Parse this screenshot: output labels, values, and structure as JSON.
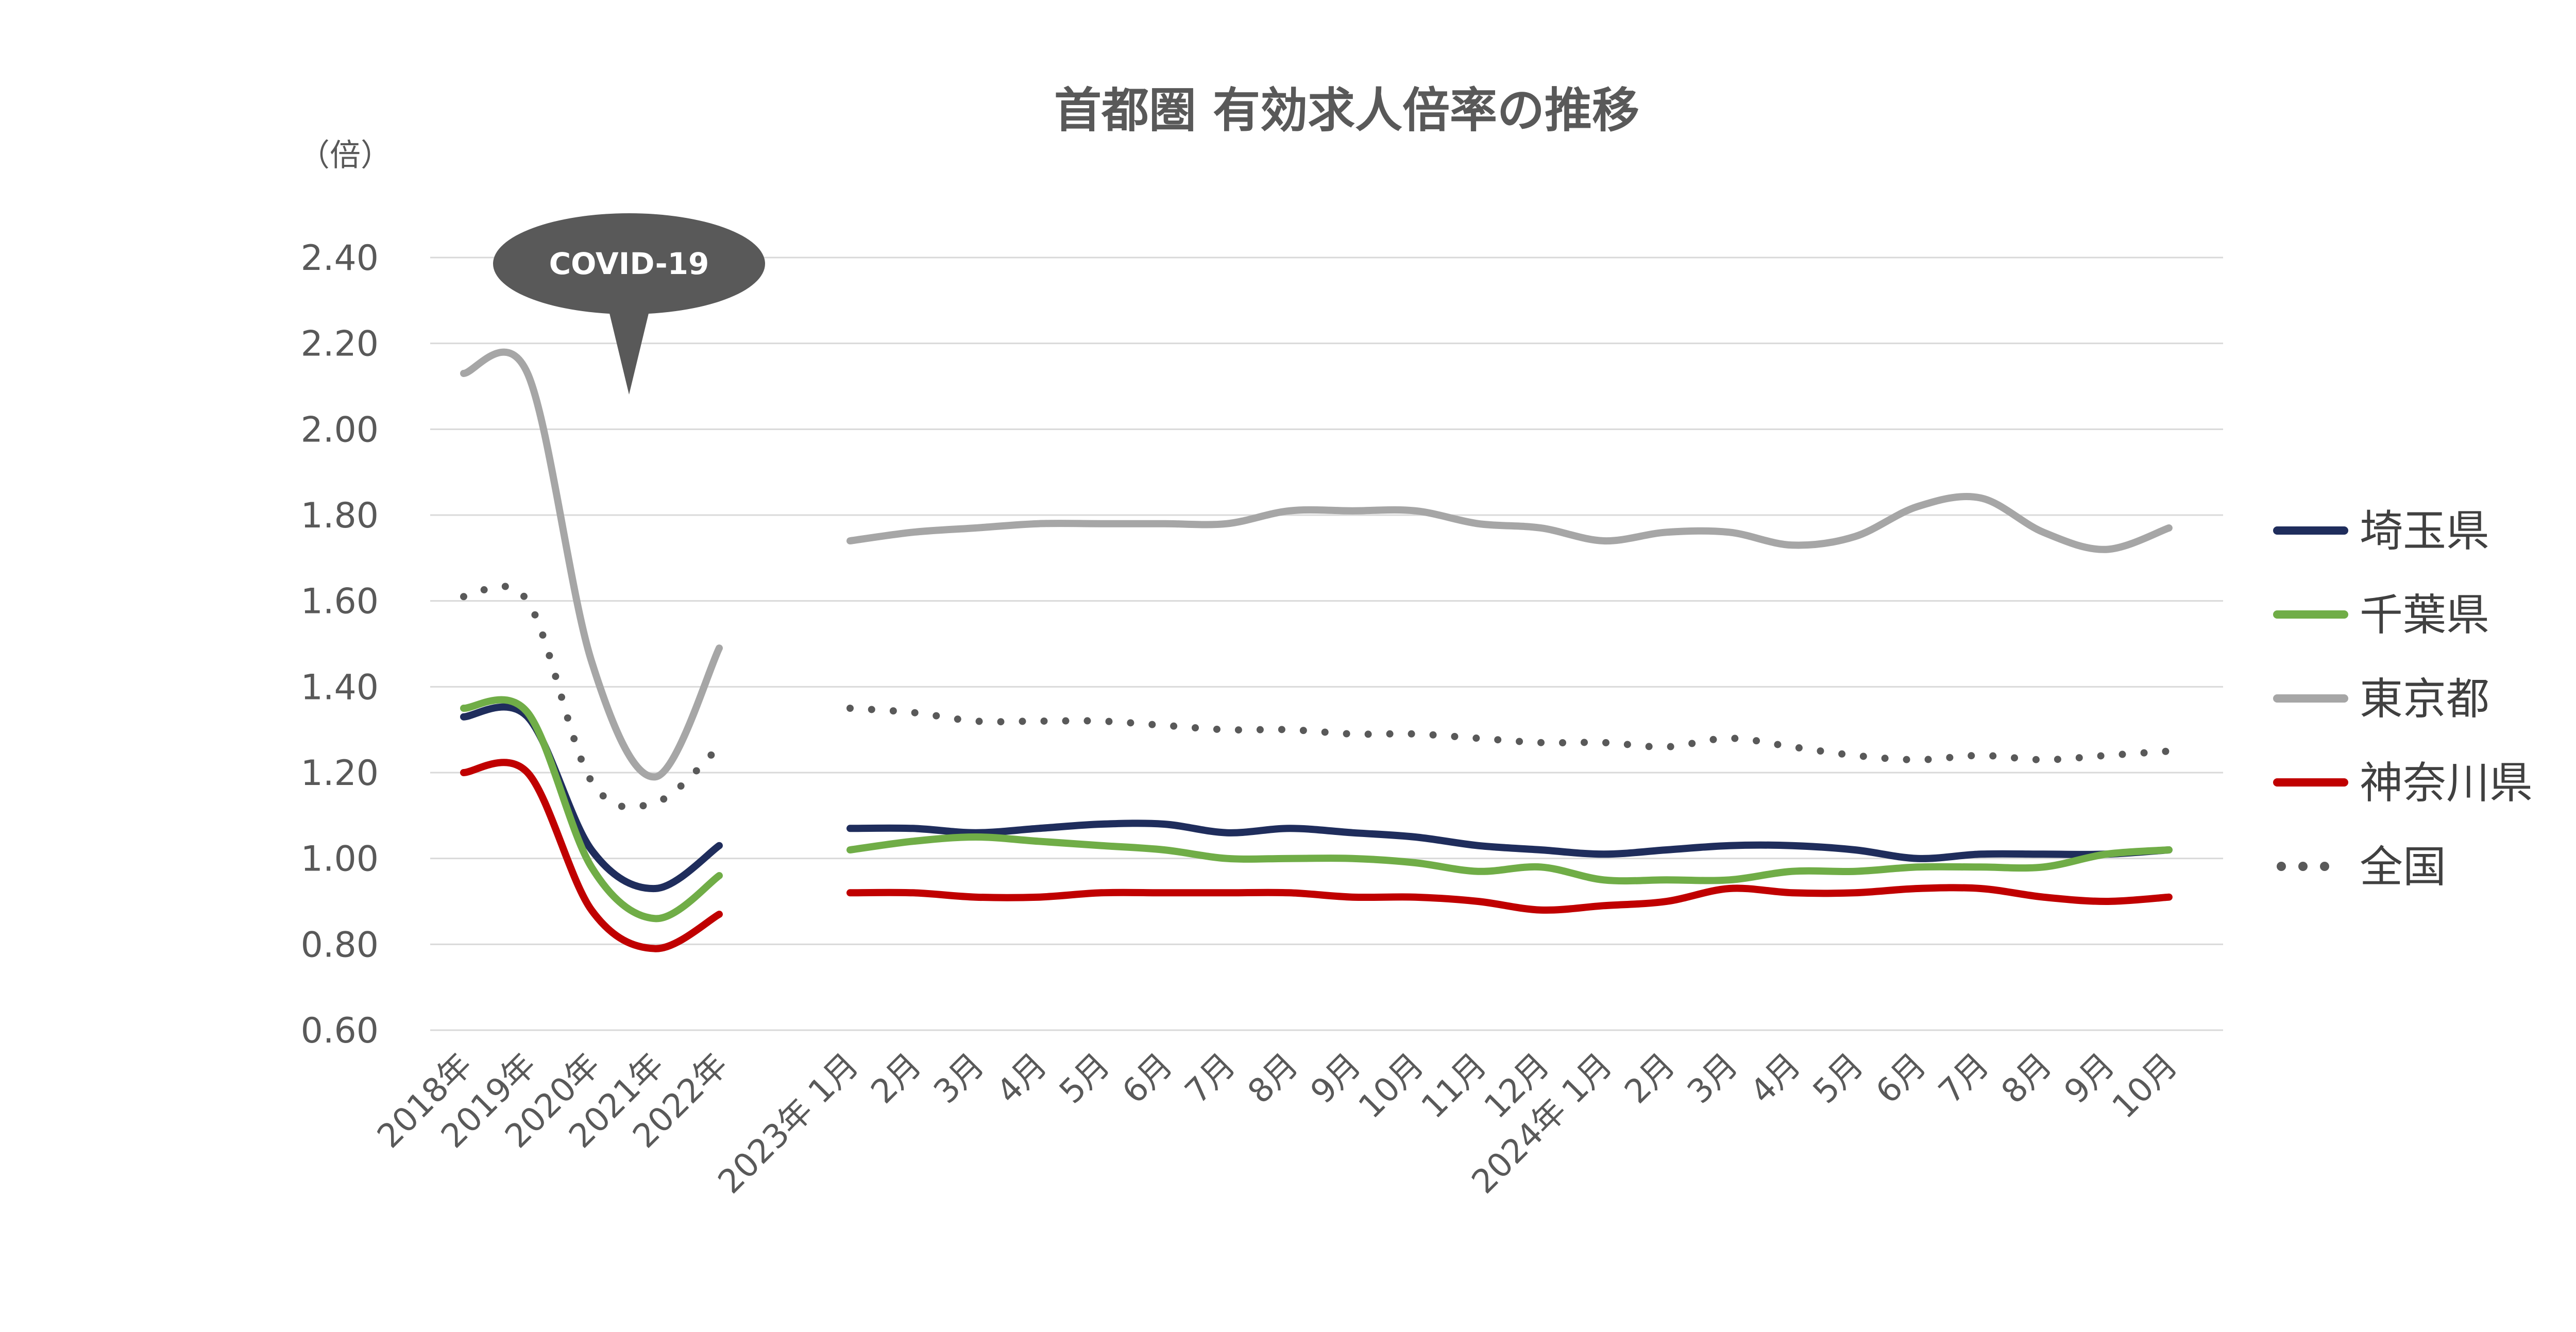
{
  "chart_data": {
    "type": "line",
    "title": "首都圏 有効求人倍率の推移",
    "ylabel": "（倍）",
    "xlabel": "",
    "ylim": [
      0.6,
      2.4
    ],
    "yticks": [
      "2.40",
      "2.20",
      "2.00",
      "1.80",
      "1.60",
      "1.40",
      "1.20",
      "1.00",
      "0.80",
      "0.60"
    ],
    "annotation": "COVID-19",
    "legend_position": "right",
    "grid": true,
    "annual_categories": [
      "2018年",
      "2019年",
      "2020年",
      "2021年",
      "2022年"
    ],
    "monthly_categories": [
      "2023年 1月",
      "2月",
      "3月",
      "4月",
      "5月",
      "6月",
      "7月",
      "8月",
      "9月",
      "10月",
      "11月",
      "12月",
      "2024年 1月",
      "2月",
      "3月",
      "4月",
      "5月",
      "6月",
      "7月",
      "8月",
      "9月",
      "10月"
    ],
    "series": [
      {
        "name": "埼玉県",
        "color": "#1f2d5c",
        "style": "solid",
        "annual": [
          1.33,
          1.33,
          1.02,
          0.93,
          1.03
        ],
        "monthly": [
          1.07,
          1.07,
          1.06,
          1.07,
          1.08,
          1.08,
          1.06,
          1.07,
          1.06,
          1.05,
          1.03,
          1.02,
          1.01,
          1.02,
          1.03,
          1.03,
          1.02,
          1.0,
          1.01,
          1.01,
          1.01,
          1.02
        ]
      },
      {
        "name": "千葉県",
        "color": "#70ad47",
        "style": "solid",
        "annual": [
          1.35,
          1.34,
          0.98,
          0.86,
          0.96
        ],
        "monthly": [
          1.02,
          1.04,
          1.05,
          1.04,
          1.03,
          1.02,
          1.0,
          1.0,
          1.0,
          0.99,
          0.97,
          0.98,
          0.95,
          0.95,
          0.95,
          0.97,
          0.97,
          0.98,
          0.98,
          0.98,
          1.01,
          1.02
        ]
      },
      {
        "name": "東京都",
        "color": "#a6a6a6",
        "style": "solid",
        "annual": [
          2.13,
          2.13,
          1.46,
          1.19,
          1.49
        ],
        "monthly": [
          1.74,
          1.76,
          1.77,
          1.78,
          1.78,
          1.78,
          1.78,
          1.81,
          1.81,
          1.81,
          1.78,
          1.77,
          1.74,
          1.76,
          1.76,
          1.73,
          1.75,
          1.82,
          1.84,
          1.76,
          1.72,
          1.77
        ]
      },
      {
        "name": "神奈川県",
        "color": "#c00000",
        "style": "solid",
        "annual": [
          1.2,
          1.2,
          0.88,
          0.79,
          0.87
        ],
        "monthly": [
          0.92,
          0.92,
          0.91,
          0.91,
          0.92,
          0.92,
          0.92,
          0.92,
          0.91,
          0.91,
          0.9,
          0.88,
          0.89,
          0.9,
          0.93,
          0.92,
          0.92,
          0.93,
          0.93,
          0.91,
          0.9,
          0.91
        ]
      },
      {
        "name": "全国",
        "color": "#595959",
        "style": "dotted",
        "annual": [
          1.61,
          1.6,
          1.18,
          1.13,
          1.26
        ],
        "monthly": [
          1.35,
          1.34,
          1.32,
          1.32,
          1.32,
          1.31,
          1.3,
          1.3,
          1.29,
          1.29,
          1.28,
          1.27,
          1.27,
          1.26,
          1.28,
          1.26,
          1.24,
          1.23,
          1.24,
          1.23,
          1.24,
          1.25
        ]
      }
    ]
  }
}
